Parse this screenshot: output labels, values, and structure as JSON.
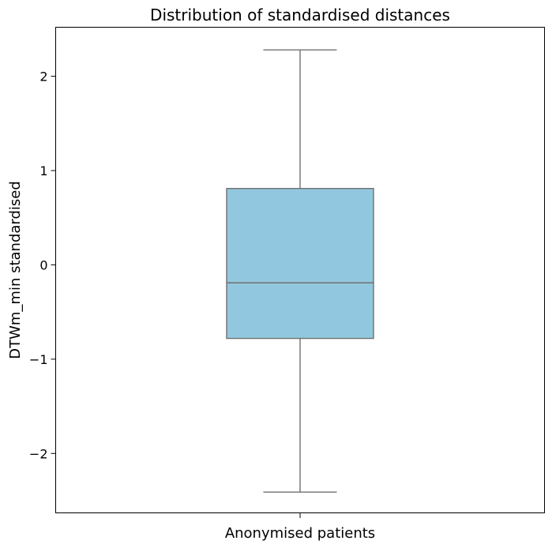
{
  "chart_data": {
    "type": "box",
    "title": "Distribution of standardised distances",
    "xlabel": "Anonymised patients",
    "ylabel": "DTWm_min standardised",
    "ylim": [
      -2.63,
      2.52
    ],
    "yticks": [
      2,
      1,
      0,
      -1,
      -2
    ],
    "ytick_labels": [
      "2",
      "1",
      "0",
      "−1",
      "−2"
    ],
    "grid": false,
    "legend": "none",
    "box": {
      "whisker_low": -2.41,
      "q1": -0.78,
      "median": -0.19,
      "q3": 0.81,
      "whisker_high": 2.28
    },
    "colors": {
      "box_fill": "#92c8df",
      "box_stroke": "#707070",
      "axes": "#000000"
    }
  }
}
